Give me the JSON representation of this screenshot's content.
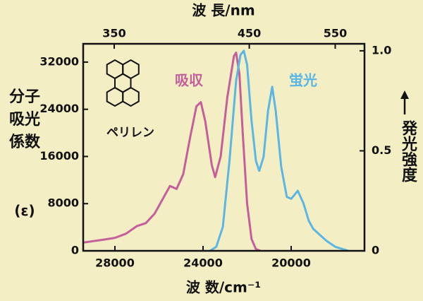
{
  "chart_data": {
    "type": "line",
    "title": "波 長/nm",
    "xlabel": "波 数/cm⁻¹",
    "ylabel": "分子吸光係数",
    "ylabel_unit": "(ε)",
    "y2label": "発光強度",
    "molecule_label": "ペリレン",
    "xlim": [
      29440,
      16672
    ],
    "xticks": [
      28000,
      24000,
      20000
    ],
    "x2lim": [
      333,
      595
    ],
    "x2scale": "reciprocal",
    "x2ticks": [
      350,
      450,
      550
    ],
    "ylim": [
      0,
      35100
    ],
    "yticks": [
      0,
      8000,
      16000,
      24000,
      32000
    ],
    "y2lim": [
      0,
      1.035
    ],
    "y2ticks": [
      0,
      0.5,
      {
        "value": 1,
        "label": "1.0"
      }
    ],
    "series": [
      {
        "name": "吸収",
        "color": "#c45f9c",
        "x": [
          29440,
          28500,
          28000,
          27500,
          27000,
          26600,
          26200,
          25800,
          25500,
          25200,
          24900,
          24600,
          24300,
          24100,
          23900,
          23600,
          23450,
          23200,
          22900,
          22600,
          22500,
          22350,
          22200,
          22000,
          21800,
          21600,
          21400
        ],
        "values": [
          1400,
          1900,
          2200,
          2900,
          4200,
          4700,
          6300,
          9000,
          11000,
          10500,
          13000,
          19000,
          24500,
          25200,
          22000,
          14500,
          12500,
          16000,
          26000,
          33000,
          33600,
          30000,
          20000,
          8000,
          2000,
          300,
          0
        ]
      },
      {
        "name": "蛍光",
        "color": "#5cb6e4",
        "axis": "y2",
        "x": [
          23680,
          23400,
          23100,
          22800,
          22500,
          22300,
          22150,
          22000,
          21800,
          21600,
          21450,
          21250,
          21050,
          20860,
          20700,
          20450,
          20200,
          20000,
          19700,
          19450,
          19200,
          19000,
          18700,
          18400,
          18000,
          17400
        ],
        "values": [
          0,
          0.02,
          0.12,
          0.45,
          0.85,
          0.98,
          1.0,
          0.93,
          0.65,
          0.45,
          0.4,
          0.47,
          0.7,
          0.82,
          0.7,
          0.42,
          0.27,
          0.26,
          0.3,
          0.24,
          0.15,
          0.11,
          0.08,
          0.05,
          0.02,
          0
        ]
      }
    ]
  }
}
